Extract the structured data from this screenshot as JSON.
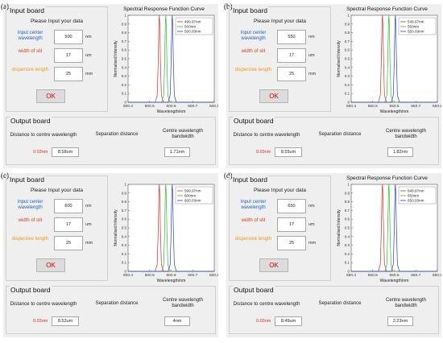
{
  "colors": {
    "red": "#e02a2a",
    "green": "#22c22a",
    "blue": "#2a3ae0",
    "label_blue": "#1f62c8",
    "label_red": "#d2401b",
    "label_orange": "#e89a18"
  },
  "panels": [
    {
      "tag": "(a)",
      "input": {
        "title": "Input board",
        "heading": "Please Input your data",
        "rows": [
          {
            "label": "Input center wavelength",
            "value": "500",
            "unit": "nm",
            "color": "label_blue"
          },
          {
            "label": "width of slit",
            "value": "17",
            "unit": "um",
            "color": "label_red"
          },
          {
            "label": "dispersive length",
            "value": "25",
            "unit": "mm",
            "color": "label_orange"
          }
        ],
        "ok_label": "OK"
      },
      "output": {
        "title": "Output board",
        "distance_label": "Distance to centre wavelength",
        "sep_label": "Separation distance",
        "bw_label": "Centre wavelength bandwidth",
        "offset": "0.03nm",
        "separation": "8.58um",
        "bandwidth": "1.71nm"
      },
      "chart_data": {
        "type": "line",
        "title": "Spectral Response Function Curve",
        "xlabel": "Wavelength/nm",
        "ylabel": "Normalised Intensity",
        "xlim": [
          500.4,
          500.8
        ],
        "ylim": [
          0,
          1
        ],
        "xticks": [
          "500.4",
          "500.5",
          "500.6",
          "500.7",
          "500.8"
        ],
        "yticks": [
          "0",
          "0.1",
          "0.2",
          "0.3",
          "0.4",
          "0.5",
          "0.6",
          "0.7",
          "0.8",
          "0.9",
          "1"
        ],
        "legend_position": "top-right",
        "series": [
          {
            "name": "499.97nm",
            "color": "red",
            "center": 500.545,
            "peak": 1
          },
          {
            "name": "500nm",
            "color": "green",
            "center": 500.575,
            "peak": 1
          },
          {
            "name": "500.03nm",
            "color": "blue",
            "center": 500.605,
            "peak": 1
          }
        ]
      }
    },
    {
      "tag": "(b)",
      "input": {
        "title": "Input board",
        "heading": "Please Input your data",
        "rows": [
          {
            "label": "Input center wavelength",
            "value": "550",
            "unit": "nm",
            "color": "label_blue"
          },
          {
            "label": "width of slit",
            "value": "17",
            "unit": "um",
            "color": "label_red"
          },
          {
            "label": "dispersive length",
            "value": "25",
            "unit": "mm",
            "color": "label_orange"
          }
        ],
        "ok_label": "OK"
      },
      "output": {
        "title": "Output board",
        "distance_label": "Distance to centre wavelength",
        "sep_label": "Separation distance",
        "bw_label": "Centre wavelength bandwidth",
        "offset": "0.03nm",
        "separation": "8.55um",
        "bandwidth": "1.82nm"
      },
      "chart_data": {
        "type": "line",
        "title": "Spectral Response Function Curve",
        "xlabel": "Wavelength/nm",
        "ylabel": "Normalised Intensity",
        "xlim": [
          550.4,
          550.8
        ],
        "ylim": [
          0,
          1
        ],
        "xticks": [
          "550.4",
          "550.5",
          "550.6",
          "550.7",
          "550.8"
        ],
        "yticks": [
          "0",
          "0.1",
          "0.2",
          "0.3",
          "0.4",
          "0.5",
          "0.6",
          "0.7",
          "0.8",
          "0.9",
          "1"
        ],
        "legend_position": "top-right",
        "series": [
          {
            "name": "549.97nm",
            "color": "red",
            "center": 550.545,
            "peak": 1
          },
          {
            "name": "550nm",
            "color": "green",
            "center": 550.575,
            "peak": 1
          },
          {
            "name": "550.03nm",
            "color": "blue",
            "center": 550.605,
            "peak": 1
          }
        ]
      }
    },
    {
      "tag": "(c)",
      "input": {
        "title": "Input board",
        "heading": "Please Input your data",
        "rows": [
          {
            "label": "Input center wavelength",
            "value": "600",
            "unit": "nm",
            "color": "label_blue"
          },
          {
            "label": "width of slit",
            "value": "17",
            "unit": "um",
            "color": "label_red"
          },
          {
            "label": "dispersive length",
            "value": "25",
            "unit": "mm",
            "color": "label_orange"
          }
        ],
        "ok_label": "OK"
      },
      "output": {
        "title": "Output board",
        "distance_label": "Distance to centre wavelength",
        "sep_label": "Separation distance",
        "bw_label": "Centre wavelength bandwidth",
        "offset": "0.03nm",
        "separation": "8.52um",
        "bandwidth": "4nm"
      },
      "chart_data": {
        "type": "line",
        "title": "",
        "xlabel": "Wavelength/nm",
        "ylabel": "Normalised Intensity",
        "xlim": [
          600.4,
          600.8
        ],
        "ylim": [
          0,
          1
        ],
        "xticks": [
          "600.4",
          "600.5",
          "600.6",
          "600.7",
          "600.8"
        ],
        "yticks": [
          "0",
          "0.1",
          "0.2",
          "0.3",
          "0.4",
          "0.5",
          "0.6",
          "0.7",
          "0.8",
          "0.9",
          "1"
        ],
        "legend_position": "top-right",
        "series": [
          {
            "name": "599.97nm",
            "color": "red",
            "center": 600.545,
            "peak": 1
          },
          {
            "name": "600nm",
            "color": "green",
            "center": 600.575,
            "peak": 1
          },
          {
            "name": "600.03nm",
            "color": "blue",
            "center": 600.605,
            "peak": 1
          }
        ]
      }
    },
    {
      "tag": "(d)",
      "input": {
        "title": "Input board",
        "heading": "Please Input your data",
        "rows": [
          {
            "label": "Input center wavelength",
            "value": "650",
            "unit": "nm",
            "color": "label_blue"
          },
          {
            "label": "width of slit",
            "value": "17",
            "unit": "um",
            "color": "label_red"
          },
          {
            "label": "dispersive length",
            "value": "25",
            "unit": "mm",
            "color": "label_orange"
          }
        ],
        "ok_label": "OK"
      },
      "output": {
        "title": "Output board",
        "distance_label": "Distance to centre wavelength",
        "sep_label": "Separation distance",
        "bw_label": "Centre wavelength bandwidth",
        "offset": "0.03nm",
        "separation": "8.49um",
        "bandwidth": "2.23nm"
      },
      "chart_data": {
        "type": "line",
        "title": "Spectral Response Function Curve",
        "xlabel": "Wavelength/nm",
        "ylabel": "Normalised Intensity",
        "xlim": [
          650.4,
          650.8
        ],
        "ylim": [
          0,
          1
        ],
        "xticks": [
          "650.4",
          "650.5",
          "650.6",
          "650.7",
          "650.8"
        ],
        "yticks": [
          "0",
          "0.1",
          "0.2",
          "0.3",
          "0.4",
          "0.5",
          "0.6",
          "0.7",
          "0.8",
          "0.9",
          "1"
        ],
        "legend_position": "top-right",
        "series": [
          {
            "name": "649.97nm",
            "color": "red",
            "center": 650.545,
            "peak": 1
          },
          {
            "name": "650nm",
            "color": "green",
            "center": 650.575,
            "peak": 1
          },
          {
            "name": "650.03nm",
            "color": "blue",
            "center": 650.605,
            "peak": 1
          }
        ]
      }
    }
  ]
}
